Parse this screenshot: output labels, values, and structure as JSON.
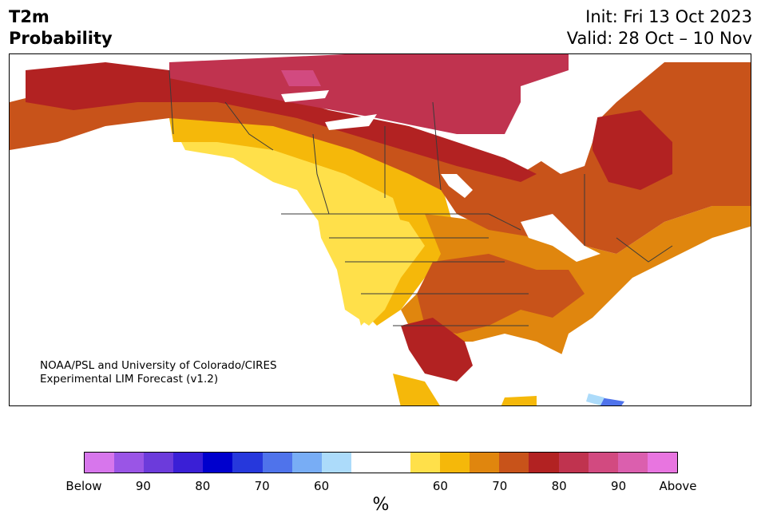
{
  "header": {
    "title_line1": "T2m",
    "title_line2": "Probability",
    "init": "Init: Fri 13 Oct 2023",
    "valid": "Valid: 28 Oct – 10 Nov"
  },
  "map": {
    "credit_line1": "NOAA/PSL and University of Colorado/CIRES",
    "credit_line2": "Experimental LIM Forecast (v1.2)"
  },
  "colorbar": {
    "colors": [
      "#d776ec",
      "#9a55e6",
      "#6c3bdb",
      "#3a1fd6",
      "#0000cd",
      "#2638dc",
      "#4f73eb",
      "#78adf5",
      "#acdbfa",
      "#ffffff",
      "#ffffff",
      "#ffe04a",
      "#f5b80a",
      "#e0860e",
      "#c8531a",
      "#b22222",
      "#c0334f",
      "#d24a80",
      "#db5fae",
      "#e875e0"
    ],
    "ticks": [
      "Below",
      "90",
      "80",
      "70",
      "60",
      "60",
      "70",
      "80",
      "90",
      "Above"
    ],
    "unit": "%"
  }
}
